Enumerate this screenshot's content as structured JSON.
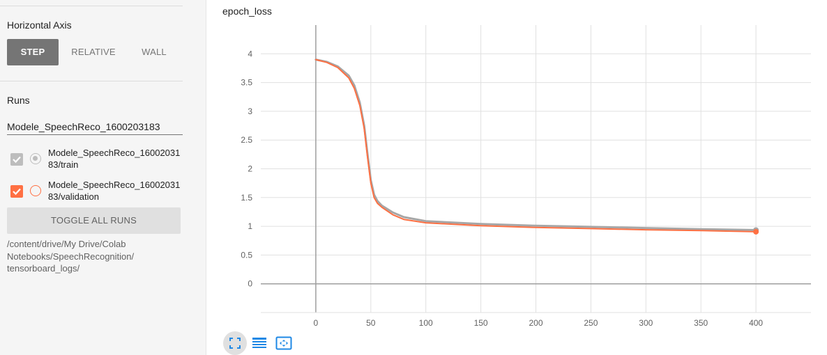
{
  "sidebar": {
    "horizontal_axis": {
      "title": "Horizontal Axis",
      "options": [
        "STEP",
        "RELATIVE",
        "WALL"
      ],
      "selected": "STEP"
    },
    "runs": {
      "title": "Runs",
      "filter_value": "Modele_SpeechReco_1600203183",
      "items": [
        {
          "label": "Modele_SpeechReco_1600203183/train",
          "checked": true,
          "color": "#bdbdbd",
          "radio_selected": true
        },
        {
          "label": "Modele_SpeechReco_1600203183/validation",
          "checked": true,
          "color": "#ff7043",
          "radio_selected": false
        }
      ],
      "toggle_all_label": "TOGGLE ALL RUNS",
      "log_dir": "/content/drive/My Drive/Colab Notebooks/SpeechRecognition/ tensorboard_logs/"
    }
  },
  "toolbar": {
    "icons": [
      "fit-screen-icon",
      "data-table-icon",
      "fit-domain-icon"
    ]
  },
  "colors": {
    "train": "#a6a6a6",
    "validation": "#ff7043",
    "active_button": "#757575"
  },
  "chart_data": {
    "type": "line",
    "title": "epoch_loss",
    "xlabel": "",
    "ylabel": "",
    "xlim": [
      -50,
      450
    ],
    "ylim": [
      -0.5,
      4.5
    ],
    "x_ticks": [
      0,
      50,
      100,
      150,
      200,
      250,
      300,
      350,
      400
    ],
    "y_ticks": [
      0,
      0.5,
      1,
      1.5,
      2,
      2.5,
      3,
      3.5,
      4
    ],
    "grid": true,
    "x": [
      0,
      10,
      20,
      30,
      35,
      40,
      44,
      47,
      50,
      53,
      56,
      60,
      70,
      80,
      100,
      150,
      200,
      250,
      300,
      350,
      400
    ],
    "series": [
      {
        "name": "Modele_SpeechReco_1600203183/train",
        "values": [
          3.9,
          3.86,
          3.78,
          3.62,
          3.45,
          3.15,
          2.75,
          2.25,
          1.8,
          1.55,
          1.44,
          1.36,
          1.24,
          1.16,
          1.09,
          1.04,
          1.01,
          0.99,
          0.97,
          0.95,
          0.935
        ]
      },
      {
        "name": "Modele_SpeechReco_1600203183/validation",
        "values": [
          3.9,
          3.85,
          3.76,
          3.58,
          3.4,
          3.1,
          2.7,
          2.2,
          1.75,
          1.5,
          1.4,
          1.33,
          1.2,
          1.12,
          1.06,
          1.01,
          0.98,
          0.96,
          0.94,
          0.925,
          0.905
        ]
      }
    ]
  }
}
